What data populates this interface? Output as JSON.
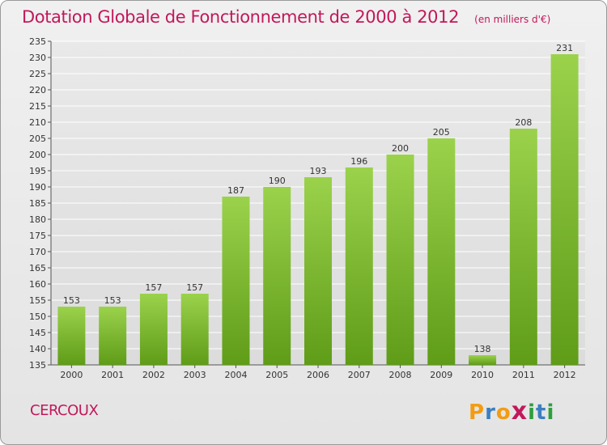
{
  "chart_data": {
    "type": "bar",
    "title": "Dotation Globale de Fonctionnement de 2000 à 2012",
    "unit_note": "(en milliers d'€)",
    "categories": [
      "2000",
      "2001",
      "2002",
      "2003",
      "2004",
      "2005",
      "2006",
      "2007",
      "2008",
      "2009",
      "2010",
      "2011",
      "2012"
    ],
    "values": [
      153,
      153,
      157,
      157,
      187,
      190,
      193,
      196,
      200,
      205,
      138,
      208,
      231
    ],
    "xlabel": "",
    "ylabel": "",
    "ylim": [
      135,
      235
    ],
    "yticks": [
      135,
      140,
      145,
      150,
      155,
      160,
      165,
      170,
      175,
      180,
      185,
      190,
      195,
      200,
      205,
      210,
      215,
      220,
      225,
      230,
      235
    ],
    "grid": true,
    "legend": "none",
    "bar_color": "#7dc02c",
    "bar_color_light": "#9bd24c",
    "bar_color_dark": "#5f9c18",
    "grid_color": "#ffffff"
  },
  "footer": {
    "commune": "CERCOUX",
    "logo_letters": [
      "P",
      "r",
      "o",
      "x",
      "i",
      "t",
      "i"
    ],
    "logo_colors": [
      "#f39c12",
      "#3a7fc1",
      "#f39c12",
      "#c2185b",
      "#2e9e3e",
      "#3a7fc1",
      "#2e9e3e"
    ]
  }
}
